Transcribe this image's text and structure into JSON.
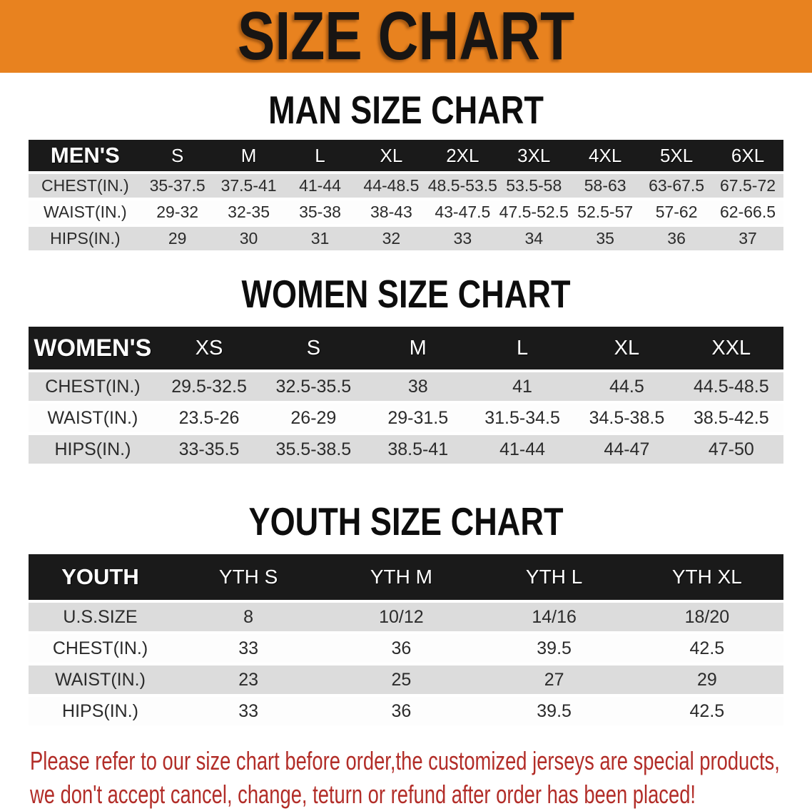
{
  "banner": {
    "title": "SIZE CHART"
  },
  "sections": [
    {
      "heading": "MAN SIZE CHART",
      "table": {
        "header": [
          "MEN'S",
          "S",
          "M",
          "L",
          "XL",
          "2XL",
          "3XL",
          "4XL",
          "5XL",
          "6XL"
        ],
        "rows": [
          {
            "label": "CHEST(IN.)",
            "values": [
              "35-37.5",
              "37.5-41",
              "41-44",
              "44-48.5",
              "48.5-53.5",
              "53.5-58",
              "58-63",
              "63-67.5",
              "67.5-72"
            ]
          },
          {
            "label": "WAIST(IN.)",
            "values": [
              "29-32",
              "32-35",
              "35-38",
              "38-43",
              "43-47.5",
              "47.5-52.5",
              "52.5-57",
              "57-62",
              "62-66.5"
            ]
          },
          {
            "label": "HIPS(IN.)",
            "values": [
              "29",
              "30",
              "31",
              "32",
              "33",
              "34",
              "35",
              "36",
              "37"
            ]
          }
        ]
      }
    },
    {
      "heading": "WOMEN SIZE CHART",
      "table": {
        "header": [
          "WOMEN'S",
          "XS",
          "S",
          "M",
          "L",
          "XL",
          "XXL"
        ],
        "rows": [
          {
            "label": "CHEST(IN.)",
            "values": [
              "29.5-32.5",
              "32.5-35.5",
              "38",
              "41",
              "44.5",
              "44.5-48.5"
            ]
          },
          {
            "label": "WAIST(IN.)",
            "values": [
              "23.5-26",
              "26-29",
              "29-31.5",
              "31.5-34.5",
              "34.5-38.5",
              "38.5-42.5"
            ]
          },
          {
            "label": "HIPS(IN.)",
            "values": [
              "33-35.5",
              "35.5-38.5",
              "38.5-41",
              "41-44",
              "44-47",
              "47-50"
            ]
          }
        ]
      }
    },
    {
      "heading": "YOUTH SIZE CHART",
      "table": {
        "header": [
          "YOUTH",
          "YTH S",
          "YTH M",
          "YTH L",
          "YTH XL"
        ],
        "rows": [
          {
            "label": "U.S.SIZE",
            "values": [
              "8",
              "10/12",
              "14/16",
              "18/20"
            ]
          },
          {
            "label": "CHEST(IN.)",
            "values": [
              "33",
              "36",
              "39.5",
              "42.5"
            ]
          },
          {
            "label": "WAIST(IN.)",
            "values": [
              "23",
              "25",
              "27",
              "29"
            ]
          },
          {
            "label": "HIPS(IN.)",
            "values": [
              "33",
              "36",
              "39.5",
              "42.5"
            ]
          }
        ]
      }
    }
  ],
  "footer": {
    "line1": "Please refer to our size chart before order,the customized jerseys are special products,",
    "line2": "we don't accept cancel, change, teturn or refund after order has been placed!"
  },
  "colors": {
    "banner_orange": "#E8821F",
    "table_header_black": "#1A1A1A",
    "row_gray": "#DCDCDC",
    "note_red": "#B22D28"
  }
}
